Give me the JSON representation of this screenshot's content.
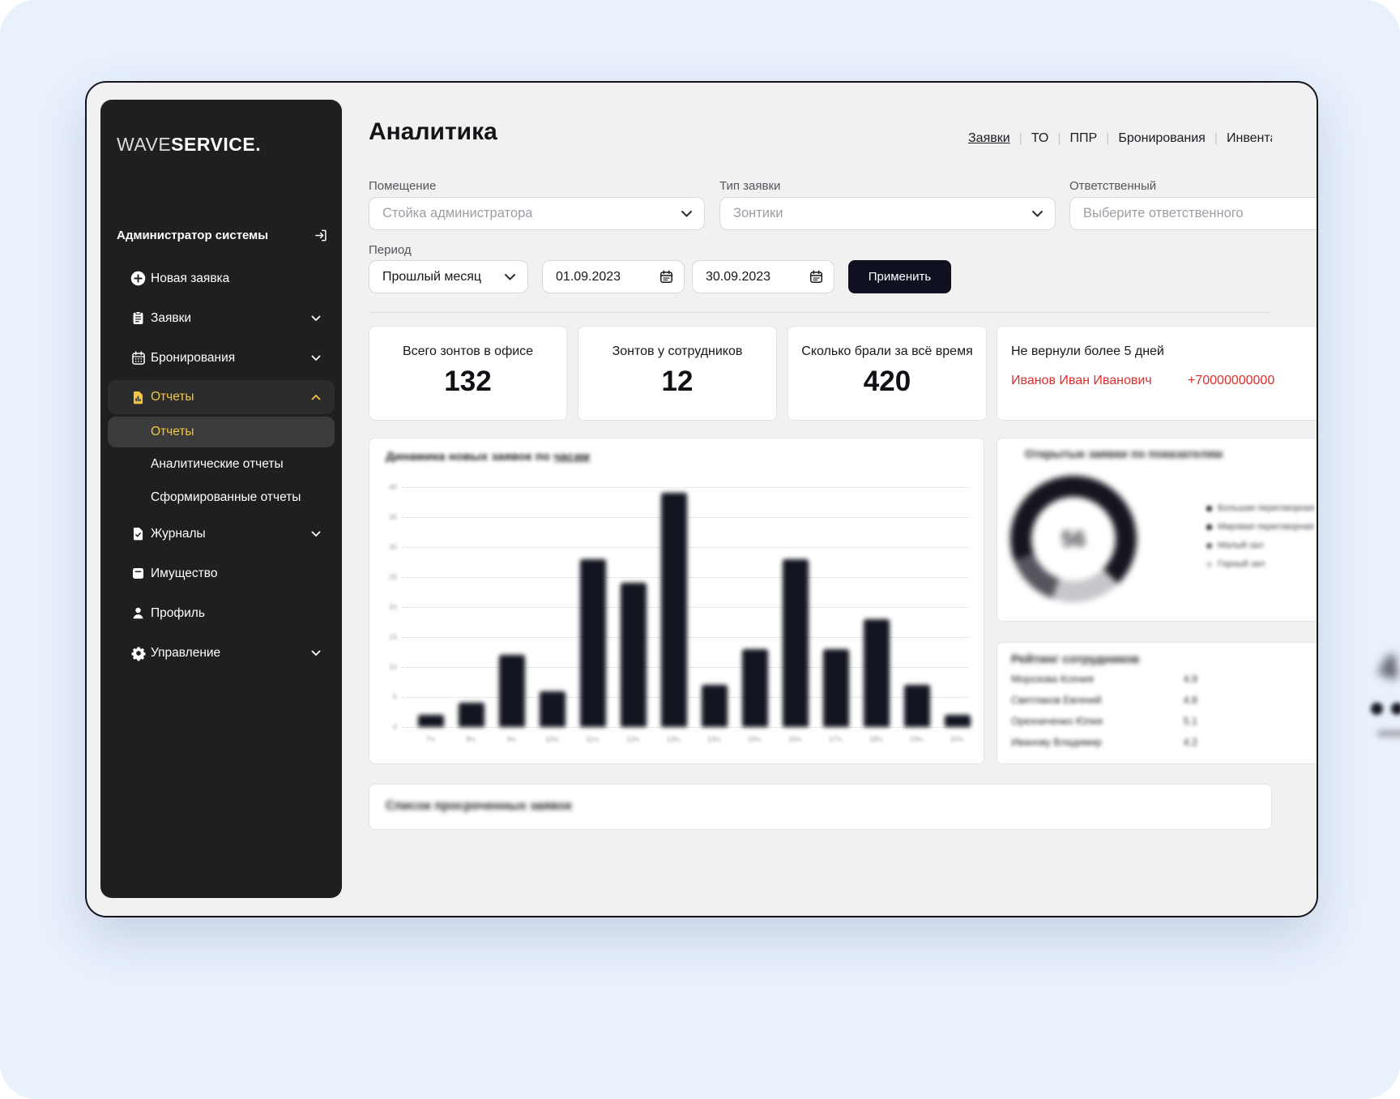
{
  "brand": {
    "logo_light": "WAVE",
    "logo_bold": "SERVICE.",
    "accent": "#f2c643"
  },
  "sidebar": {
    "user": "Администратор системы",
    "logout_icon": "logout-icon",
    "items": [
      {
        "id": "new-request",
        "icon": "plus-circle",
        "label": "Новая заявка"
      },
      {
        "id": "requests",
        "icon": "clipboard",
        "label": "Заявки",
        "chevron": "down"
      },
      {
        "id": "bookings",
        "icon": "calendar",
        "label": "Бронирования",
        "chevron": "down"
      },
      {
        "id": "reports",
        "icon": "report",
        "label": "Отчеты",
        "chevron": "up",
        "active": true,
        "children": [
          {
            "label": "Отчеты",
            "active": true
          },
          {
            "label": "Аналитические отчеты"
          },
          {
            "label": "Сформированные отчеты"
          }
        ]
      },
      {
        "id": "journals",
        "icon": "journal",
        "label": "Журналы",
        "chevron": "down"
      },
      {
        "id": "property",
        "icon": "box",
        "label": "Имущество"
      },
      {
        "id": "profile",
        "icon": "user",
        "label": "Профиль"
      },
      {
        "id": "management",
        "icon": "gear",
        "label": "Управление",
        "chevron": "down"
      }
    ]
  },
  "header": {
    "title": "Аналитика",
    "nav": [
      {
        "label": "Заявки",
        "active": true
      },
      {
        "label": "ТО"
      },
      {
        "label": "ППР"
      },
      {
        "label": "Бронирования"
      },
      {
        "label": "Инвентаризация"
      }
    ]
  },
  "filters": {
    "room": {
      "label": "Помещение",
      "placeholder": "Стойка администратора"
    },
    "request_type": {
      "label": "Тип заявки",
      "placeholder": "Зонтики"
    },
    "responsible": {
      "label": "Ответственный",
      "placeholder": "Выберите ответственного"
    },
    "period": {
      "label": "Период",
      "preset": "Прошлый месяц",
      "date_from": "01.09.2023",
      "date_to": "30.09.2023",
      "apply_label": "Применить"
    }
  },
  "stats": {
    "cards": [
      {
        "label": "Всего зонтов в офисе",
        "value": "132"
      },
      {
        "label": "Зонтов у сотрудников",
        "value": "12"
      },
      {
        "label": "Сколько брали за всё время",
        "value": "420"
      }
    ],
    "overdue": {
      "label": "Не вернули более 5 дней",
      "name": "Иванов Иван Иванович",
      "phone": "+70000000000",
      "alert_color": "#e22b2b"
    }
  },
  "chart_data": [
    {
      "type": "bar",
      "blurred": true,
      "title": "Динамика новых заявок по ",
      "title_link_word": "часам",
      "categories": [
        "7ч.",
        "8ч.",
        "9ч.",
        "10ч.",
        "11ч.",
        "12ч.",
        "13ч.",
        "14ч.",
        "15ч.",
        "16ч.",
        "17ч.",
        "18ч.",
        "19ч.",
        "20ч."
      ],
      "values": [
        2,
        4,
        12,
        6,
        28,
        24,
        39,
        7,
        13,
        28,
        13,
        18,
        7,
        2
      ],
      "xlabel": "",
      "ylabel": "",
      "ylim": [
        0,
        40
      ],
      "ytick_step": 5,
      "grid": "dotted-horizontal",
      "legend_position": "none",
      "bar_color": "#131520"
    },
    {
      "type": "pie",
      "donut": true,
      "blurred": true,
      "title": "Открытые заявки по показателям",
      "center_value": "56",
      "segments": [
        {
          "label": "Большая переговорная",
          "value": 34,
          "color": "#15151f"
        },
        {
          "label": "Мировая переговорная",
          "value": 34,
          "color": "#15151f"
        },
        {
          "label": "Малый зал",
          "value": 14,
          "color": "#55555e"
        },
        {
          "label": "Горный зал",
          "value": 18,
          "color": "#c6c6cb"
        }
      ],
      "start_angle": 135,
      "draw_order": [
        3,
        2,
        0,
        1
      ],
      "legend_position": "right"
    },
    {
      "type": "table",
      "blurred": true,
      "title": "Рейтинг сотрудников",
      "rows": [
        {
          "name": "Морозова Ксения",
          "value": "4.9"
        },
        {
          "name": "Светлаков Евгений",
          "value": "4.8"
        },
        {
          "name": "Орехниченко Юлия",
          "value": "5.1"
        },
        {
          "name": "Иванову Владимир",
          "value": "4.2"
        }
      ]
    }
  ],
  "overdue_list": {
    "title": "Список просроченных заявок",
    "blurred": true
  }
}
